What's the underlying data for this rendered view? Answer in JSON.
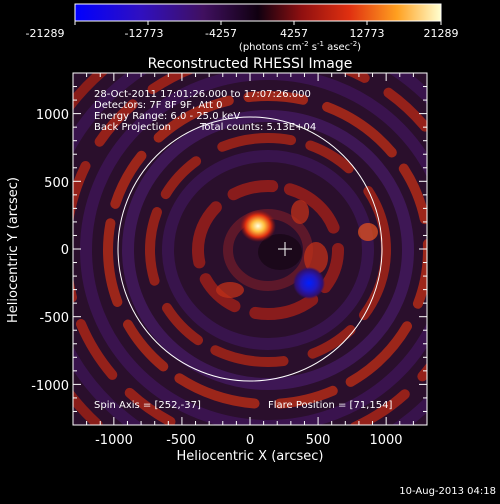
{
  "colorbar": {
    "ticks": [
      "-21289",
      "-12773",
      "-4257",
      "4257",
      "12773",
      "21289"
    ],
    "units_prefix": "(photons cm",
    "units_sup1": "-2",
    "units_mid": " s",
    "units_sup2": "-1",
    "units_mid2": " asec",
    "units_sup3": "-2",
    "units_suffix": ")"
  },
  "title": "Reconstructed RHESSI Image",
  "info": {
    "line1": "28-Oct-2011 17:01:26.000 to 17:07:26.000",
    "line2": "Detectors: 7F 8F 9F, Att 0",
    "line3": "Energy Range: 6.0 - 25.0 keV",
    "line4a": "Back Projection",
    "line4b": "Total counts: 5.13E+04"
  },
  "footer_labels": {
    "spin_axis": "Spin Axis = [252,-37]",
    "flare_position": "Flare Position = [71,154]"
  },
  "axes": {
    "xlabel": "Heliocentric X (arcsec)",
    "ylabel": "Heliocentric Y (arcsec)",
    "xticks": [
      "-1000",
      "-500",
      "0",
      "500",
      "1000"
    ],
    "yticks": [
      "1000",
      "500",
      "0",
      "-500",
      "-1000"
    ],
    "xticks_values": [
      -1000,
      -500,
      0,
      500,
      1000
    ],
    "yticks_values": [
      1000,
      500,
      0,
      -500,
      -1000
    ],
    "xlim": [
      -1300,
      1300
    ],
    "ylim": [
      -1300,
      1300
    ]
  },
  "timestamp": "10-Aug-2013 04:18",
  "colors": {
    "background": "#000000",
    "foreground": "#ffffff"
  }
}
